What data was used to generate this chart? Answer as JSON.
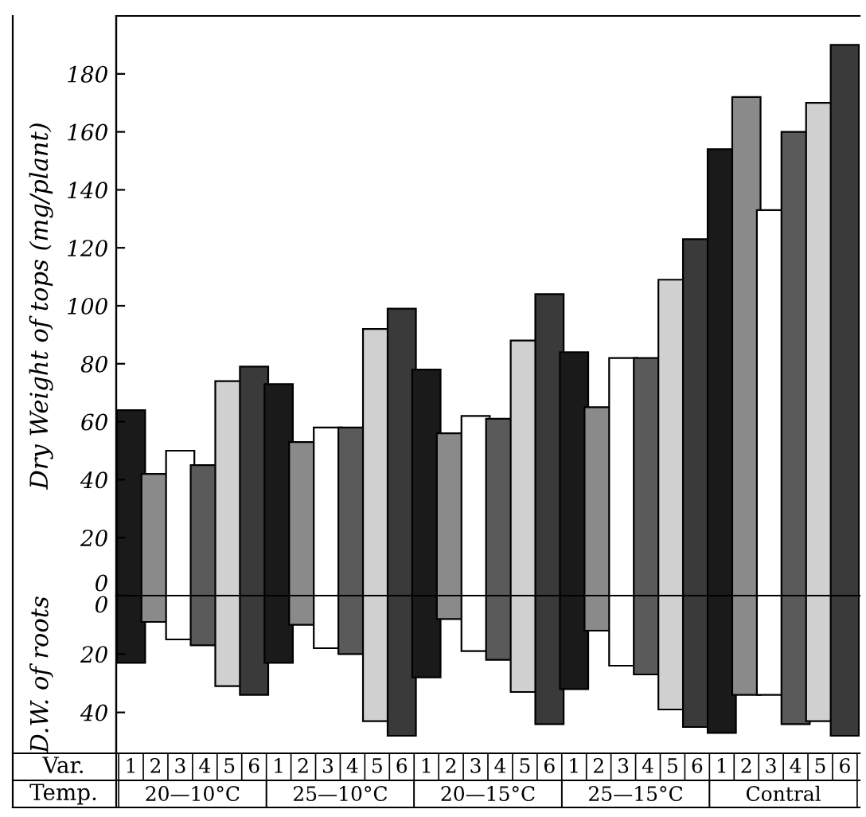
{
  "chart_data": [
    {
      "type": "bar",
      "ylabel": "Dry Weight of tops (mg/plant)",
      "categories": [
        "1",
        "2",
        "3",
        "4",
        "5",
        "6",
        "1",
        "2",
        "3",
        "4",
        "5",
        "6",
        "1",
        "2",
        "3",
        "4",
        "5",
        "6",
        "1",
        "2",
        "3",
        "4",
        "5",
        "6",
        "1",
        "2",
        "3",
        "4",
        "5",
        "6"
      ],
      "colors": [
        "#1a1a1a",
        "#8a8a8a",
        "#ffffff",
        "#5a5a5a",
        "#d0d0d0",
        "#3a3a3a",
        "#1a1a1a",
        "#8a8a8a",
        "#ffffff",
        "#5a5a5a",
        "#d0d0d0",
        "#3a3a3a",
        "#1a1a1a",
        "#8a8a8a",
        "#ffffff",
        "#5a5a5a",
        "#d0d0d0",
        "#3a3a3a",
        "#1a1a1a",
        "#8a8a8a",
        "#ffffff",
        "#5a5a5a",
        "#d0d0d0",
        "#3a3a3a",
        "#1a1a1a",
        "#8a8a8a",
        "#ffffff",
        "#5a5a5a",
        "#d0d0d0",
        "#3a3a3a"
      ],
      "values": [
        64,
        42,
        50,
        45,
        74,
        79,
        73,
        53,
        58,
        58,
        92,
        99,
        78,
        56,
        62,
        61,
        88,
        104,
        84,
        65,
        82,
        82,
        109,
        123,
        154,
        172,
        133,
        160,
        170,
        190
      ],
      "ylim": [
        0,
        200
      ],
      "yticks": [
        0,
        20,
        40,
        60,
        80,
        100,
        120,
        140,
        160,
        180
      ],
      "tick_labels": "y",
      "grid": false,
      "legend": false
    },
    {
      "type": "bar",
      "ylabel": "D.W. of roots",
      "categories": [
        "1",
        "2",
        "3",
        "4",
        "5",
        "6",
        "1",
        "2",
        "3",
        "4",
        "5",
        "6",
        "1",
        "2",
        "3",
        "4",
        "5",
        "6",
        "1",
        "2",
        "3",
        "4",
        "5",
        "6",
        "1",
        "2",
        "3",
        "4",
        "5",
        "6"
      ],
      "colors": [
        "#1a1a1a",
        "#8a8a8a",
        "#ffffff",
        "#5a5a5a",
        "#d0d0d0",
        "#3a3a3a",
        "#1a1a1a",
        "#8a8a8a",
        "#ffffff",
        "#5a5a5a",
        "#d0d0d0",
        "#3a3a3a",
        "#1a1a1a",
        "#8a8a8a",
        "#ffffff",
        "#5a5a5a",
        "#d0d0d0",
        "#3a3a3a",
        "#1a1a1a",
        "#8a8a8a",
        "#ffffff",
        "#5a5a5a",
        "#d0d0d0",
        "#3a3a3a",
        "#1a1a1a",
        "#8a8a8a",
        "#ffffff",
        "#5a5a5a",
        "#d0d0d0",
        "#3a3a3a"
      ],
      "values": [
        23,
        9,
        15,
        17,
        31,
        34,
        23,
        10,
        18,
        20,
        43,
        48,
        28,
        8,
        19,
        22,
        33,
        44,
        32,
        12,
        24,
        27,
        39,
        45,
        47,
        34,
        34,
        44,
        43,
        48
      ],
      "ylim": [
        54,
        0
      ],
      "yticks": [
        0,
        20,
        40
      ],
      "grid": false,
      "legend": false,
      "annotations": [
        "Var.",
        "Temp.",
        "20—10°C",
        "25—10°C",
        "20—15°C",
        "25—15°C",
        "Contral"
      ]
    }
  ]
}
